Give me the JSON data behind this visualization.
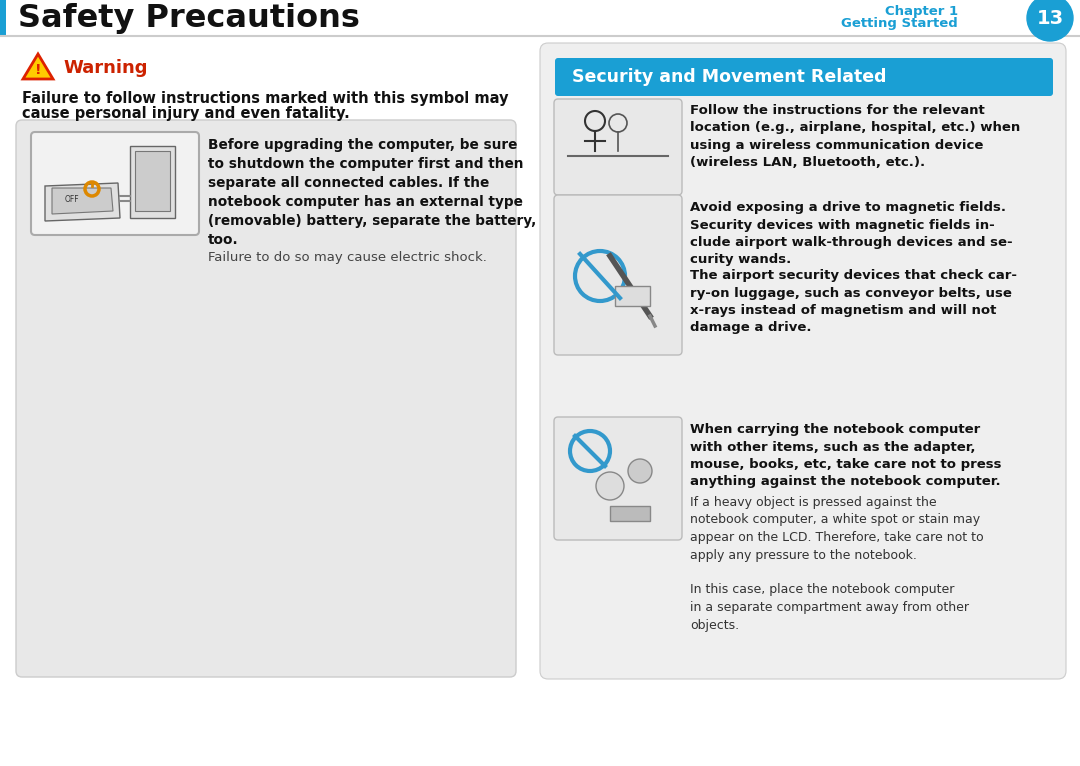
{
  "page_title": "Safety Precautions",
  "chapter_num": "13",
  "header_blue": "#1a9fd4",
  "warning_title": "Warning",
  "warning_color": "#cc2200",
  "warning_desc1": "Failure to follow instructions marked with this symbol may",
  "warning_desc2": "cause personal injury and even fatality.",
  "left_box_bold": "Before upgrading the computer, be sure\nto shutdown the computer first and then\nseparate all connected cables. If the\nnotebook computer has an external type\n(removable) battery, separate the battery,\ntoo.",
  "left_box_normal": "Failure to do so may cause electric shock.",
  "right_section_title": "Security and Movement Related",
  "item1_bold": "Follow the instructions for the relevant\nlocation (e.g., airplane, hospital, etc.) when\nusing a wireless communication device\n(wireless LAN, Bluetooth, etc.).",
  "item1_normal": "",
  "item2_bold": "Avoid exposing a drive to magnetic fields.\nSecurity devices with magnetic fields in-\nclude airport walk-through devices and se-\ncurity wands.",
  "item2_normal": "The airport security devices that check car-\nry-on luggage, such as conveyor belts, use\nx-rays instead of magnetism and will not\ndamage a drive.",
  "item3_bold": "When carrying the notebook computer\nwith other items, such as the adapter,\nmouse, books, etc, take care not to press\nanything against the notebook computer.",
  "item3_normal": "If a heavy object is pressed against the\nnotebook computer, a white spot or stain may\nappear on the LCD. Therefore, take care not to\napply any pressure to the notebook.\n\nIn this case, place the notebook computer\nin a separate compartment away from other\nobjects.",
  "bg_color": "#ffffff",
  "panel_bg": "#e8e8e8",
  "right_panel_bg": "#eeeeee"
}
